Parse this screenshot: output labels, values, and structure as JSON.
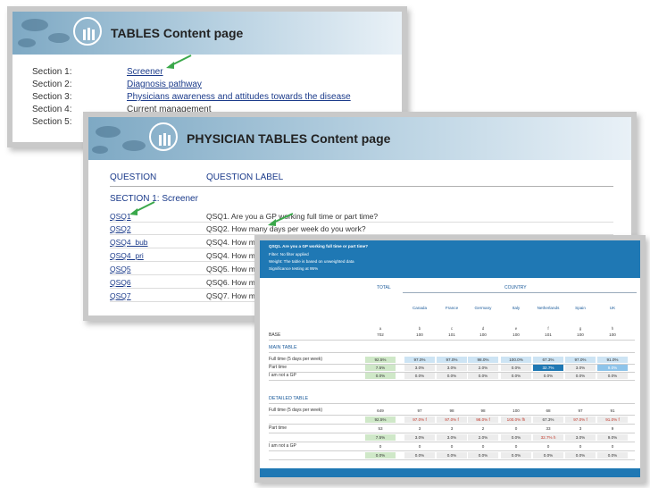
{
  "content_page": {
    "title": "TABLES Content page",
    "sections": [
      {
        "label": "Section 1:",
        "link": "Screener"
      },
      {
        "label": "Section 2:",
        "link": "Diagnosis pathway"
      },
      {
        "label": "Section 3:",
        "link": "Physicians awareness and attitudes towards the disease"
      },
      {
        "label": "Section 4:",
        "link": "Current  management"
      },
      {
        "label": "Section 5:",
        "link": ""
      }
    ]
  },
  "physician_page": {
    "title": "PHYSICIAN TABLES Content page",
    "col_question": "QUESTION",
    "col_label": "QUESTION LABEL",
    "section_title": "SECTION 1: Screener",
    "questions": [
      {
        "code": "QSQ1",
        "label": "QSQ1. Are you a GP working full time or part time?"
      },
      {
        "code": "QSQ2",
        "label": "QSQ2. How many days per week do you work?"
      },
      {
        "code": "QSQ4_bub",
        "label": "QSQ4. How man"
      },
      {
        "code": "QSQ4_pri",
        "label": "QSQ4. How man"
      },
      {
        "code": "QSQ5",
        "label": "QSQ5. How man"
      },
      {
        "code": "QSQ6",
        "label": "QSQ6. How man"
      },
      {
        "code": "QSQ7",
        "label": "QSQ7. How man"
      }
    ]
  },
  "data_table": {
    "header_lines": [
      "QSQ1. Are you a GP working full time or part time?",
      "Filter: No filter applied",
      "Weight: The table is based on unweighted data",
      "Significance testing at 95%"
    ],
    "total_label": "TOTAL",
    "country_label": "COUNTRY",
    "countries": [
      "Canada",
      "France",
      "Germany",
      "Italy",
      "Netherlands",
      "Spain",
      "UK"
    ],
    "letters": [
      "a",
      "b",
      "c",
      "d",
      "e",
      "f",
      "g",
      "h"
    ],
    "base": {
      "label": "BASE",
      "values": [
        "702",
        "100",
        "101",
        "100",
        "100",
        "101",
        "100",
        "100"
      ]
    },
    "main_table": {
      "title": "MAIN TABLE",
      "rows": [
        {
          "label": "Full time (5 days per week)",
          "values": [
            "92.5%",
            "97.0%",
            "97.0%",
            "98.0%",
            "100.0%",
            "67.3%",
            "97.0%",
            "91.0%"
          ]
        },
        {
          "label": "Part time",
          "values": [
            "7.5%",
            "3.0%",
            "3.0%",
            "2.0%",
            "0.0%",
            "32.7%",
            "3.0%",
            "9.0%"
          ]
        },
        {
          "label": "I am not a GP",
          "values": [
            "0.0%",
            "0.0%",
            "0.0%",
            "0.0%",
            "0.0%",
            "0.0%",
            "0.0%",
            "0.0%"
          ]
        }
      ]
    },
    "detailed_table": {
      "title": "DETAILED TABLE",
      "rows": [
        {
          "label": "Full time (5 days per week)",
          "counts": [
            "649",
            "97",
            "98",
            "98",
            "100",
            "68",
            "97",
            "91"
          ],
          "percents": [
            "92.5%",
            "97.0% f",
            "97.0% f",
            "98.0% f",
            "100.0% fh",
            "67.3%",
            "97.0% f",
            "91.0% f"
          ]
        },
        {
          "label": "Part time",
          "counts": [
            "53",
            "3",
            "3",
            "2",
            "0",
            "33",
            "3",
            "9"
          ],
          "percents": [
            "7.5%",
            "3.0%",
            "3.0%",
            "2.0%",
            "0.0%",
            "32.7% h",
            "3.0%",
            "9.0%"
          ]
        },
        {
          "label": "I am not a GP",
          "counts": [
            "0",
            "0",
            "0",
            "0",
            "0",
            "0",
            "0",
            "0"
          ],
          "percents": [
            "0.0%",
            "0.0%",
            "0.0%",
            "0.0%",
            "0.0%",
            "0.0%",
            "0.0%",
            "0.0%"
          ]
        }
      ]
    }
  },
  "colors": {
    "accent_blue": "#1f78b4",
    "arrow_green": "#3aa84a",
    "link_blue": "#1a3a8a",
    "sig_red": "#c0392b"
  }
}
